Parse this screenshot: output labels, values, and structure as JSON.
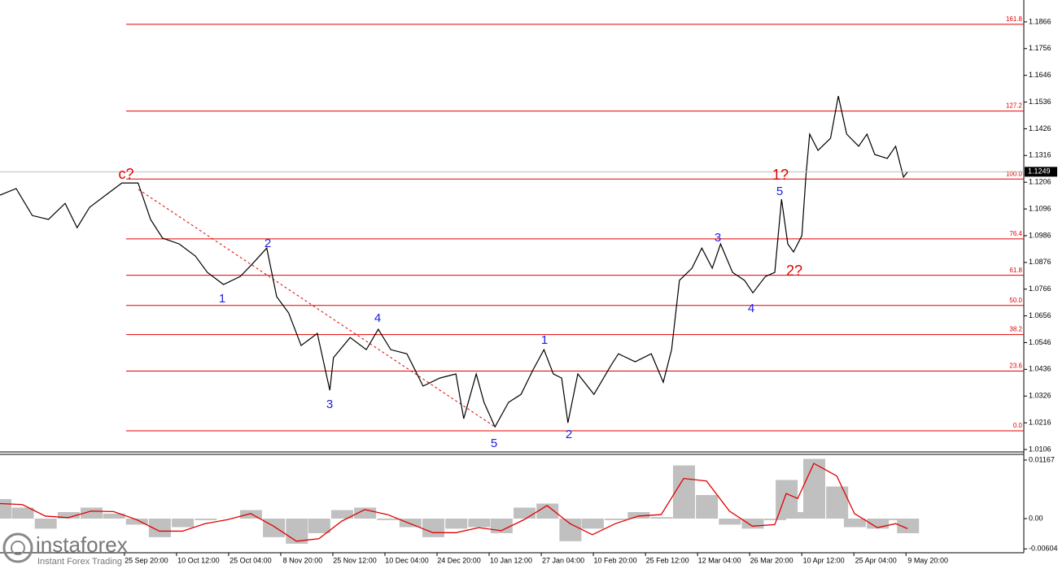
{
  "chart_data": [
    {
      "type": "line",
      "x": [
        -2.81,
        -2.5,
        -2.19,
        -1.88,
        -1.56,
        -1.33,
        -1.09,
        -0.78,
        -0.47,
        -0.16,
        0.08,
        0.31,
        0.63,
        0.94,
        1.17,
        1.48,
        1.8,
        2.03,
        2.31,
        2.5,
        2.73,
        2.97,
        3.28,
        3.52,
        3.59,
        3.91,
        4.22,
        4.45,
        4.69,
        5.0,
        5.31,
        5.63,
        5.94,
        6.09,
        6.33,
        6.48,
        6.69,
        6.95,
        7.19,
        7.42,
        7.63,
        7.81,
        7.97,
        8.09,
        8.28,
        8.59,
        8.91,
        9.06,
        9.38,
        9.69,
        9.92,
        10.08,
        10.23,
        10.47,
        10.66,
        10.86,
        11.02,
        11.25,
        11.48,
        11.64,
        11.88,
        12.06,
        12.19,
        12.31,
        12.42,
        12.58,
        12.66,
        12.73,
        12.89,
        13.13,
        13.28,
        13.44,
        13.67,
        13.83,
        13.98,
        14.22,
        14.38,
        14.53,
        14.61
      ],
      "series": [
        {
          "color": "#000000",
          "values": [
            1.1153,
            1.118,
            1.1069,
            1.1053,
            1.1119,
            1.1019,
            1.1103,
            1.1153,
            1.1203,
            1.1203,
            1.1053,
            1.0976,
            1.0952,
            1.0902,
            1.0835,
            1.0785,
            1.0818,
            1.0869,
            1.0935,
            1.0735,
            1.0668,
            1.0534,
            1.0584,
            1.035,
            1.0484,
            1.0567,
            1.0517,
            1.0601,
            1.0517,
            1.05,
            1.0367,
            1.04,
            1.0417,
            1.0233,
            1.0417,
            1.03,
            1.0199,
            1.03,
            1.0333,
            1.0434,
            1.0517,
            1.0417,
            1.04,
            1.0216,
            1.0417,
            1.0333,
            1.045,
            1.05,
            1.0467,
            1.05,
            1.0383,
            1.0517,
            1.0802,
            1.0852,
            1.0935,
            1.0852,
            1.0952,
            1.0835,
            1.0802,
            1.0751,
            1.0818,
            1.0835,
            1.1136,
            1.0952,
            1.0919,
            1.0986,
            1.1237,
            1.1404,
            1.1337,
            1.1387,
            1.1561,
            1.1404,
            1.1354,
            1.1404,
            1.132,
            1.1304,
            1.1354,
            1.1227,
            1.1249
          ]
        }
      ],
      "xlim": [
        -2.81,
        16.84
      ],
      "xticks": [
        {
          "value": 0,
          "label": "25 Sep 20:00"
        },
        {
          "value": 1,
          "label": "10 Oct 12:00"
        },
        {
          "value": 2,
          "label": "25 Oct 04:00"
        },
        {
          "value": 3,
          "label": "8 Nov 20:00"
        },
        {
          "value": 4,
          "label": "25 Nov 12:00"
        },
        {
          "value": 5,
          "label": "10 Dec 04:00"
        },
        {
          "value": 6,
          "label": "24 Dec 20:00"
        },
        {
          "value": 7,
          "label": "10 Jan 12:00"
        },
        {
          "value": 8,
          "label": "27 Jan 04:00"
        },
        {
          "value": 9,
          "label": "10 Feb 20:00"
        },
        {
          "value": 10,
          "label": "25 Feb 12:00"
        },
        {
          "value": 11,
          "label": "12 Mar 04:00"
        },
        {
          "value": 12,
          "label": "26 Mar 20:00"
        },
        {
          "value": 13,
          "label": "10 Apr 12:00"
        },
        {
          "value": 14,
          "label": "25 Apr 04:00"
        },
        {
          "value": 15,
          "label": "9 May 20:00"
        }
      ],
      "ylim": [
        1.0096,
        1.1956
      ],
      "yticks": [
        1.0106,
        1.0216,
        1.0326,
        1.0436,
        1.0546,
        1.0656,
        1.0766,
        1.0876,
        1.0986,
        1.1096,
        1.1206,
        1.1316,
        1.1426,
        1.1536,
        1.1646,
        1.1756,
        1.1866
      ],
      "levels": [
        {
          "label": "161.8",
          "price": 1.1856
        },
        {
          "label": "127.2",
          "price": 1.1499
        },
        {
          "label": "100.0",
          "price": 1.1219
        },
        {
          "label": "76.4",
          "price": 1.0973
        },
        {
          "label": "61.8",
          "price": 1.0823
        },
        {
          "label": "50.0",
          "price": 1.0699
        },
        {
          "label": "38.2",
          "price": 1.0579
        },
        {
          "label": "23.6",
          "price": 1.0429
        },
        {
          "label": "0.0",
          "price": 1.0183
        }
      ],
      "level_color": "#e00000",
      "annotations": [
        {
          "text": "c?",
          "color": "#e00000"
        },
        {
          "text": "1",
          "color": "#2020e0"
        },
        {
          "text": "2",
          "color": "#2020e0"
        },
        {
          "text": "3",
          "color": "#2020e0"
        },
        {
          "text": "4",
          "color": "#2020e0"
        },
        {
          "text": "5",
          "color": "#2020e0"
        },
        {
          "text": "1",
          "color": "#2020e0"
        },
        {
          "text": "2",
          "color": "#2020e0"
        },
        {
          "text": "3",
          "color": "#2020e0"
        },
        {
          "text": "4",
          "color": "#2020e0"
        },
        {
          "text": "5",
          "color": "#2020e0"
        },
        {
          "text": "1?",
          "color": "#e00000"
        },
        {
          "text": "2?",
          "color": "#e00000"
        }
      ],
      "last_price_line": true
    },
    {
      "type": "bar",
      "x": [
        -2.81,
        -2.38,
        -1.94,
        -1.5,
        -1.06,
        -0.63,
        -0.19,
        0.25,
        0.69,
        1.13,
        1.56,
        2,
        2.44,
        2.88,
        3.31,
        3.75,
        4.19,
        4.63,
        5.06,
        5.5,
        5.94,
        6.38,
        6.81,
        7.25,
        7.69,
        8.13,
        8.56,
        9,
        9.44,
        9.88,
        10.31,
        10.75,
        11.19,
        11.63,
        12.06,
        12.28,
        12.5,
        12.81,
        13.25,
        13.59,
        14.03,
        14.38,
        14.61
      ],
      "series": [
        {
          "color": "#c0c0c0",
          "style": "bar",
          "values": [
            0.0039,
            0.0022,
            -0.002,
            0.0013,
            0.0022,
            0.001,
            -0.0012,
            -0.0037,
            -0.0017,
            -0.0003,
            0,
            0.0017,
            -0.0037,
            -0.005,
            -0.0029,
            0.0017,
            0.0022,
            -0.0003,
            -0.0017,
            -0.0037,
            -0.002,
            -0.0017,
            -0.0029,
            0.0022,
            0.003,
            -0.0045,
            -0.002,
            -0.0003,
            0.0013,
            0.0003,
            0.0106,
            0.0047,
            -0.0012,
            -0.002,
            -0.0003,
            0.0077,
            0.0013,
            0.0119,
            0.0064,
            -0.0017,
            -0.002,
            -0.0003,
            -0.0029
          ]
        },
        {
          "color": "#e00000",
          "style": "line",
          "values": [
            0.003,
            0.0028,
            0.0005,
            0.0002,
            0.0015,
            0.0014,
            -0.0002,
            -0.0025,
            -0.0025,
            -0.001,
            -0.0002,
            0.001,
            -0.0015,
            -0.0045,
            -0.004,
            -0.0005,
            0.0018,
            0.0008,
            -0.001,
            -0.0028,
            -0.0028,
            -0.0018,
            -0.0024,
            -0.0002,
            0.0026,
            -0.001,
            -0.0032,
            -0.001,
            0.0005,
            0.0008,
            0.008,
            0.0075,
            0.0015,
            -0.0015,
            -0.0012,
            0.005,
            0.004,
            0.011,
            0.0085,
            0.001,
            -0.0018,
            -0.001,
            -0.002
          ]
        }
      ],
      "xlim": [
        -2.81,
        16.84
      ],
      "ylim": [
        -0.0068,
        0.0128
      ],
      "yticks": [
        0.01167,
        {
          "value": 0,
          "label": "0.00"
        },
        -0.00604
      ]
    }
  ],
  "watermark": {
    "brand": "instaforex",
    "tagline": "Instant Forex Trading"
  }
}
